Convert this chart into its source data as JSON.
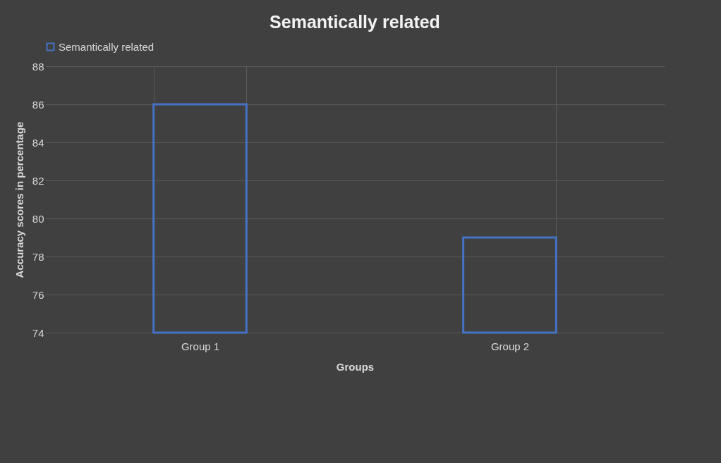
{
  "chart_data": {
    "type": "bar",
    "title": "Semantically related",
    "xlabel": "Groups",
    "ylabel": "Accuracy scores in percentage",
    "categories": [
      "Group 1",
      "Group 2"
    ],
    "series": [
      {
        "name": "Semantically related",
        "color": "#4472c4",
        "values": [
          86,
          79
        ]
      }
    ],
    "ylim": [
      74,
      88
    ],
    "yticks": [
      74,
      76,
      78,
      80,
      82,
      84,
      86,
      88
    ],
    "grid": true,
    "legend": "top"
  }
}
